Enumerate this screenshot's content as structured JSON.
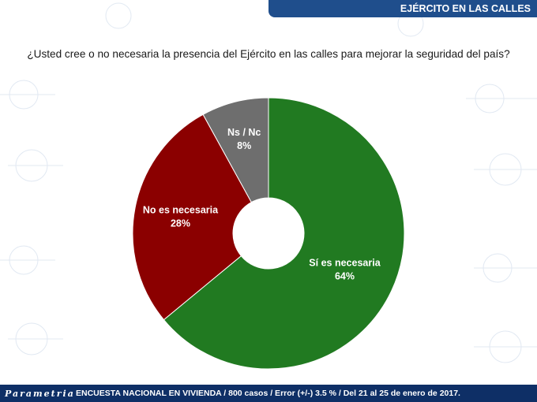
{
  "header": {
    "banner_title": "EJÉRCITO EN LAS CALLES"
  },
  "question": "¿Usted cree o no necesaria la presencia del Ejército en las calles para mejorar la seguridad del país?",
  "chart_data": {
    "type": "pie",
    "title": "",
    "slices": [
      {
        "label": "Sí es necesaria",
        "value": 64,
        "value_label": "64%",
        "color": "#217a21"
      },
      {
        "label": "No es necesaria",
        "value": 28,
        "value_label": "28%",
        "color": "#8b0000"
      },
      {
        "label": "Ns / Nc",
        "value": 8,
        "value_label": "8%",
        "color": "#6e6e6e"
      }
    ],
    "start": "top",
    "direction": "clockwise",
    "donut": true
  },
  "footer": {
    "logo": "Parametria",
    "text": "ENCUESTA NACIONAL EN VIVIENDA / 800 casos / Error (+/-) 3.5 % / Del 21 al 25 de enero de 2017."
  }
}
